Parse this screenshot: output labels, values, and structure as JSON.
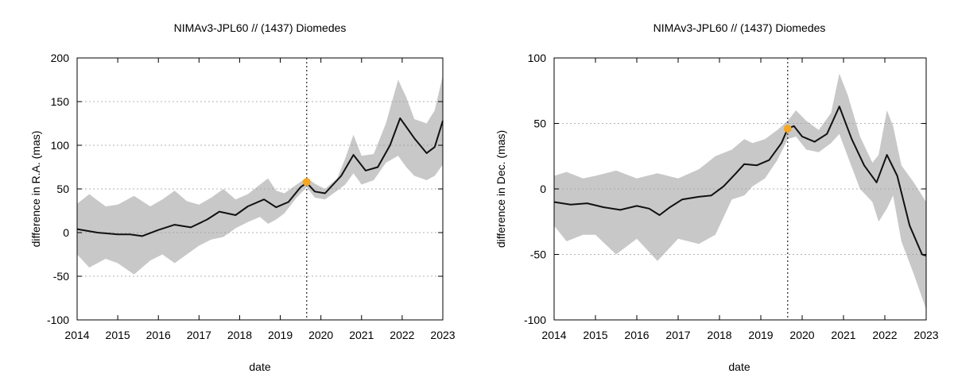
{
  "chart_data": [
    {
      "type": "line",
      "title": "NIMAv3-JPL60 // (1437) Diomedes",
      "xlabel": "date",
      "ylabel": "difference in R.A. (mas)",
      "xlim": [
        2014,
        2023
      ],
      "ylim": [
        -100,
        200
      ],
      "xticks": [
        "2014",
        "2015",
        "2016",
        "2017",
        "2018",
        "2019",
        "2020",
        "2021",
        "2022",
        "2023"
      ],
      "yticks": [
        "-100",
        "-50",
        "0",
        "50",
        "100",
        "150",
        "200"
      ],
      "grid": "horizontal dotted",
      "vline_x": 2019.65,
      "marker": {
        "x": 2019.65,
        "y": 58,
        "color": "#f5a623"
      },
      "series": [
        {
          "name": "difference",
          "color": "#111111",
          "x": [
            2014.0,
            2014.5,
            2015.0,
            2015.3,
            2015.6,
            2016.0,
            2016.4,
            2016.8,
            2017.2,
            2017.5,
            2017.9,
            2018.2,
            2018.6,
            2018.9,
            2019.2,
            2019.5,
            2019.65,
            2019.85,
            2020.1,
            2020.5,
            2020.8,
            2021.1,
            2021.4,
            2021.7,
            2021.95,
            2022.3,
            2022.6,
            2022.8,
            2023.0
          ],
          "y": [
            4,
            0,
            -2,
            -2,
            -4,
            3,
            9,
            6,
            15,
            24,
            20,
            30,
            38,
            29,
            35,
            52,
            57,
            47,
            45,
            65,
            89,
            71,
            75,
            100,
            131,
            108,
            91,
            98,
            128
          ]
        },
        {
          "name": "uncertainty upper",
          "color": "#c8c8c8",
          "x": [
            2014.0,
            2014.3,
            2014.7,
            2015.0,
            2015.4,
            2015.8,
            2016.1,
            2016.4,
            2016.7,
            2017.0,
            2017.3,
            2017.6,
            2017.9,
            2018.2,
            2018.5,
            2018.7,
            2018.9,
            2019.1,
            2019.4,
            2019.65,
            2019.85,
            2020.1,
            2020.4,
            2020.6,
            2020.8,
            2021.0,
            2021.3,
            2021.6,
            2021.9,
            2022.1,
            2022.3,
            2022.6,
            2022.8,
            2023.0
          ],
          "y": [
            33,
            44,
            30,
            32,
            42,
            30,
            38,
            48,
            36,
            32,
            40,
            50,
            38,
            44,
            55,
            62,
            48,
            45,
            55,
            63,
            56,
            50,
            62,
            85,
            112,
            88,
            90,
            125,
            175,
            155,
            130,
            125,
            140,
            180
          ]
        },
        {
          "name": "uncertainty lower",
          "color": "#c8c8c8",
          "x": [
            2014.0,
            2014.3,
            2014.7,
            2015.0,
            2015.4,
            2015.8,
            2016.1,
            2016.4,
            2016.7,
            2017.0,
            2017.3,
            2017.6,
            2017.9,
            2018.2,
            2018.5,
            2018.7,
            2018.9,
            2019.1,
            2019.4,
            2019.65,
            2019.85,
            2020.1,
            2020.4,
            2020.6,
            2020.8,
            2021.0,
            2021.3,
            2021.6,
            2021.9,
            2022.1,
            2022.3,
            2022.6,
            2022.8,
            2023.0
          ],
          "y": [
            -25,
            -40,
            -30,
            -35,
            -48,
            -32,
            -25,
            -35,
            -25,
            -15,
            -8,
            -5,
            5,
            12,
            18,
            10,
            15,
            22,
            40,
            52,
            40,
            38,
            48,
            55,
            68,
            55,
            60,
            80,
            88,
            75,
            65,
            60,
            65,
            78
          ]
        }
      ]
    },
    {
      "type": "line",
      "title": "NIMAv3-JPL60 // (1437) Diomedes",
      "xlabel": "date",
      "ylabel": "difference in Dec. (mas)",
      "xlim": [
        2014,
        2023
      ],
      "ylim": [
        -100,
        100
      ],
      "xticks": [
        "2014",
        "2015",
        "2016",
        "2017",
        "2018",
        "2019",
        "2020",
        "2021",
        "2022",
        "2023"
      ],
      "yticks": [
        "-100",
        "-50",
        "0",
        "50",
        "100"
      ],
      "grid": "horizontal dotted",
      "vline_x": 2019.65,
      "marker": {
        "x": 2019.65,
        "y": 46,
        "color": "#f5a623"
      },
      "series": [
        {
          "name": "difference",
          "color": "#111111",
          "x": [
            2014.0,
            2014.4,
            2014.8,
            2015.2,
            2015.6,
            2016.0,
            2016.3,
            2016.55,
            2016.8,
            2017.1,
            2017.5,
            2017.8,
            2018.1,
            2018.4,
            2018.6,
            2018.9,
            2019.2,
            2019.5,
            2019.65,
            2019.8,
            2020.0,
            2020.3,
            2020.6,
            2020.9,
            2021.2,
            2021.5,
            2021.8,
            2022.05,
            2022.3,
            2022.6,
            2022.9,
            2023.0
          ],
          "y": [
            -10,
            -12,
            -11,
            -14,
            -16,
            -13,
            -15,
            -20,
            -14,
            -8,
            -6,
            -5,
            2,
            12,
            19,
            18,
            22,
            35,
            46,
            48,
            40,
            36,
            42,
            63,
            38,
            18,
            5,
            26,
            10,
            -28,
            -50,
            -51
          ]
        },
        {
          "name": "uncertainty upper",
          "color": "#c8c8c8",
          "x": [
            2014.0,
            2014.3,
            2014.7,
            2015.0,
            2015.5,
            2016.0,
            2016.5,
            2017.0,
            2017.5,
            2017.9,
            2018.3,
            2018.6,
            2018.8,
            2019.1,
            2019.4,
            2019.65,
            2019.85,
            2020.1,
            2020.4,
            2020.7,
            2020.9,
            2021.1,
            2021.4,
            2021.7,
            2021.85,
            2022.05,
            2022.2,
            2022.4,
            2022.7,
            2023.0
          ],
          "y": [
            10,
            13,
            8,
            10,
            14,
            8,
            12,
            8,
            15,
            25,
            30,
            38,
            35,
            38,
            45,
            52,
            60,
            52,
            45,
            58,
            88,
            72,
            40,
            20,
            26,
            60,
            48,
            18,
            5,
            -10
          ]
        },
        {
          "name": "uncertainty lower",
          "color": "#c8c8c8",
          "x": [
            2014.0,
            2014.3,
            2014.7,
            2015.0,
            2015.5,
            2016.0,
            2016.5,
            2017.0,
            2017.5,
            2017.9,
            2018.3,
            2018.6,
            2018.8,
            2019.1,
            2019.4,
            2019.65,
            2019.85,
            2020.1,
            2020.4,
            2020.7,
            2020.9,
            2021.1,
            2021.4,
            2021.7,
            2021.85,
            2022.05,
            2022.2,
            2022.4,
            2022.7,
            2023.0
          ],
          "y": [
            -28,
            -40,
            -35,
            -35,
            -50,
            -38,
            -55,
            -38,
            -42,
            -35,
            -8,
            -5,
            2,
            8,
            22,
            38,
            40,
            30,
            28,
            35,
            42,
            25,
            0,
            -10,
            -25,
            -15,
            -5,
            -40,
            -65,
            -92
          ]
        }
      ]
    }
  ]
}
